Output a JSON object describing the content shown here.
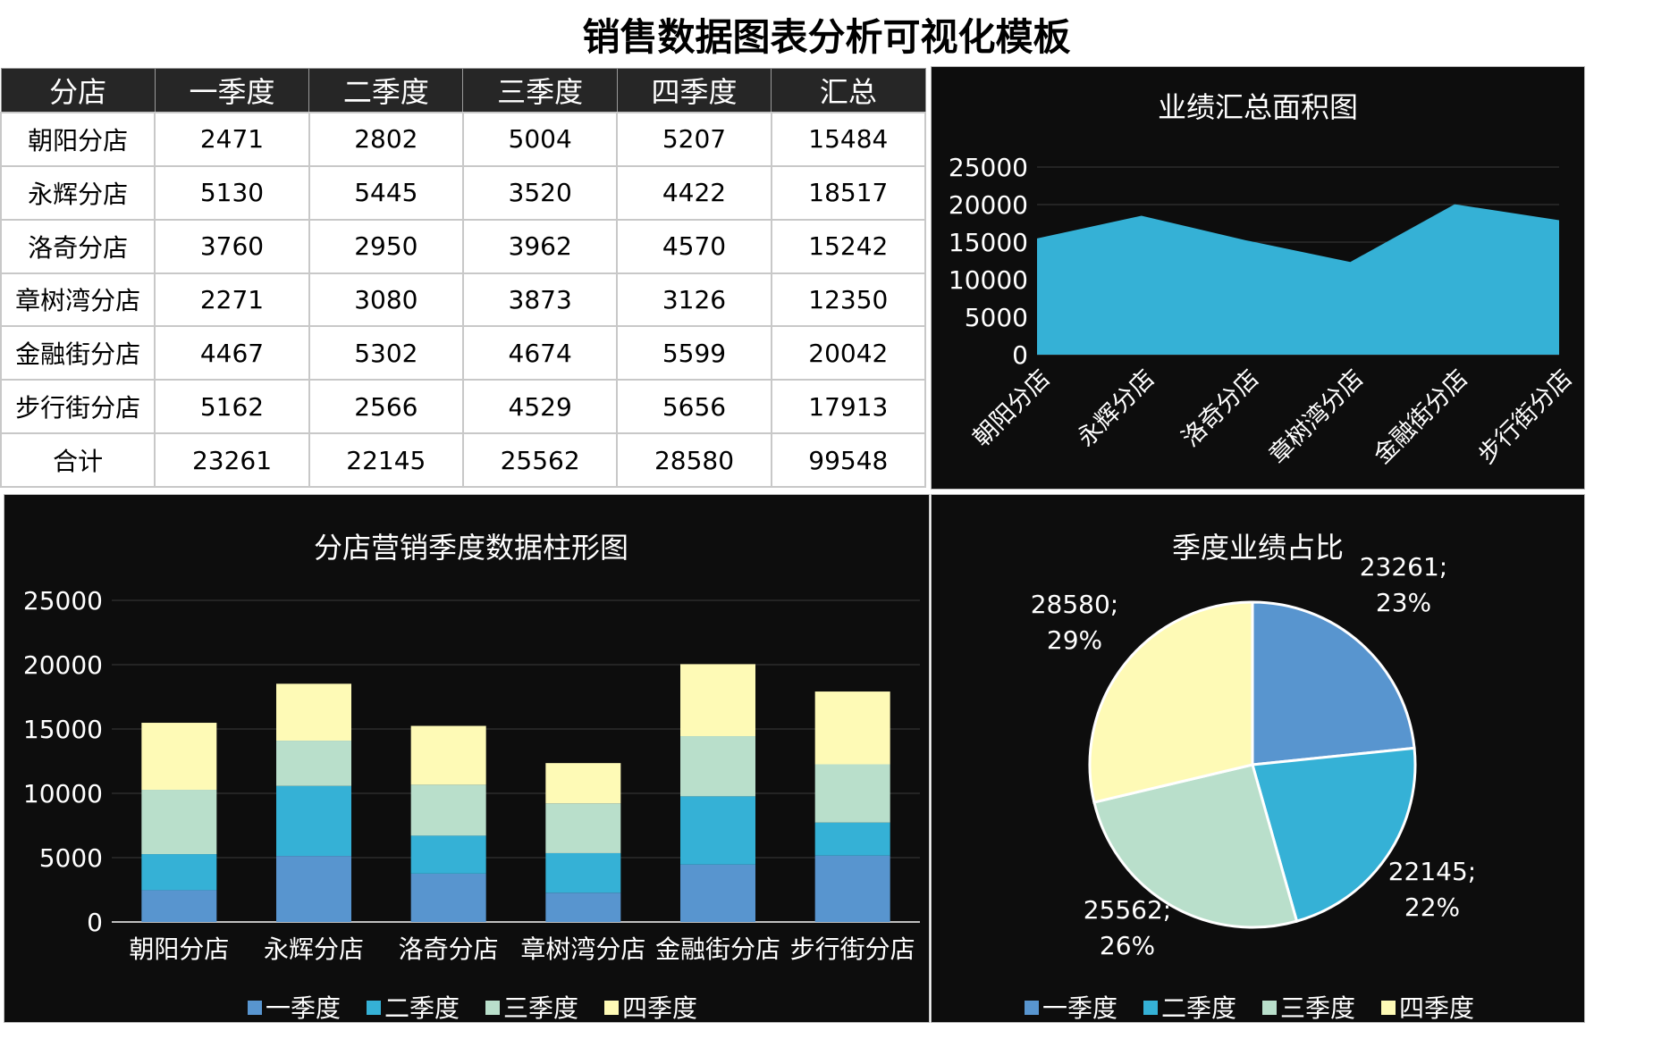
{
  "page": {
    "title": "销售数据图表分析可视化模板"
  },
  "table": {
    "headers": [
      "分店",
      "一季度",
      "二季度",
      "三季度",
      "四季度",
      "汇总"
    ],
    "rows": [
      [
        "朝阳分店",
        "2471",
        "2802",
        "5004",
        "5207",
        "15484"
      ],
      [
        "永辉分店",
        "5130",
        "5445",
        "3520",
        "4422",
        "18517"
      ],
      [
        "洛奇分店",
        "3760",
        "2950",
        "3962",
        "4570",
        "15242"
      ],
      [
        "章树湾分店",
        "2271",
        "3080",
        "3873",
        "3126",
        "12350"
      ],
      [
        "金融街分店",
        "4467",
        "5302",
        "4674",
        "5599",
        "20042"
      ],
      [
        "步行街分店",
        "5162",
        "2566",
        "4529",
        "5656",
        "17913"
      ],
      [
        "合计",
        "23261",
        "22145",
        "25562",
        "28580",
        "99548"
      ]
    ]
  },
  "chart_data": [
    {
      "type": "area",
      "title": "业绩汇总面积图",
      "categories": [
        "朝阳分店",
        "永辉分店",
        "洛奇分店",
        "章树湾分店",
        "金融街分店",
        "步行街分店"
      ],
      "values": [
        15484,
        18517,
        15242,
        12350,
        20042,
        17913
      ],
      "ylim": [
        0,
        25000
      ],
      "yticks": [
        0,
        5000,
        10000,
        15000,
        20000,
        25000
      ],
      "color": "#35B1D6",
      "grid": true
    },
    {
      "type": "bar",
      "stacked": true,
      "title": "分店营销季度数据柱形图",
      "categories": [
        "朝阳分店",
        "永辉分店",
        "洛奇分店",
        "章树湾分店",
        "金融街分店",
        "步行街分店"
      ],
      "series": [
        {
          "name": "一季度",
          "values": [
            2471,
            5130,
            3760,
            2271,
            4467,
            5162
          ],
          "color": "#5895CF"
        },
        {
          "name": "二季度",
          "values": [
            2802,
            5445,
            2950,
            3080,
            5302,
            2566
          ],
          "color": "#35B1D6"
        },
        {
          "name": "三季度",
          "values": [
            5004,
            3520,
            3962,
            3873,
            4674,
            4529
          ],
          "color": "#B9DFCB"
        },
        {
          "name": "四季度",
          "values": [
            5207,
            4422,
            4570,
            3126,
            5599,
            5656
          ],
          "color": "#FEFAB6"
        }
      ],
      "ylim": [
        0,
        25000
      ],
      "yticks": [
        0,
        5000,
        10000,
        15000,
        20000,
        25000
      ],
      "legend": "bottom",
      "grid": true
    },
    {
      "type": "pie",
      "title": "季度业绩占比",
      "slices": [
        {
          "name": "一季度",
          "value": 23261,
          "label_value": "23261;",
          "label_pct": "23%",
          "color": "#5895CF"
        },
        {
          "name": "二季度",
          "value": 22145,
          "label_value": "22145;",
          "label_pct": "22%",
          "color": "#35B1D6"
        },
        {
          "name": "三季度",
          "value": 25562,
          "label_value": "25562;",
          "label_pct": "26%",
          "color": "#B9DFCB"
        },
        {
          "name": "四季度",
          "value": 28580,
          "label_value": "28580;",
          "label_pct": "29%",
          "color": "#FEFAB6"
        }
      ],
      "legend": "bottom"
    }
  ]
}
